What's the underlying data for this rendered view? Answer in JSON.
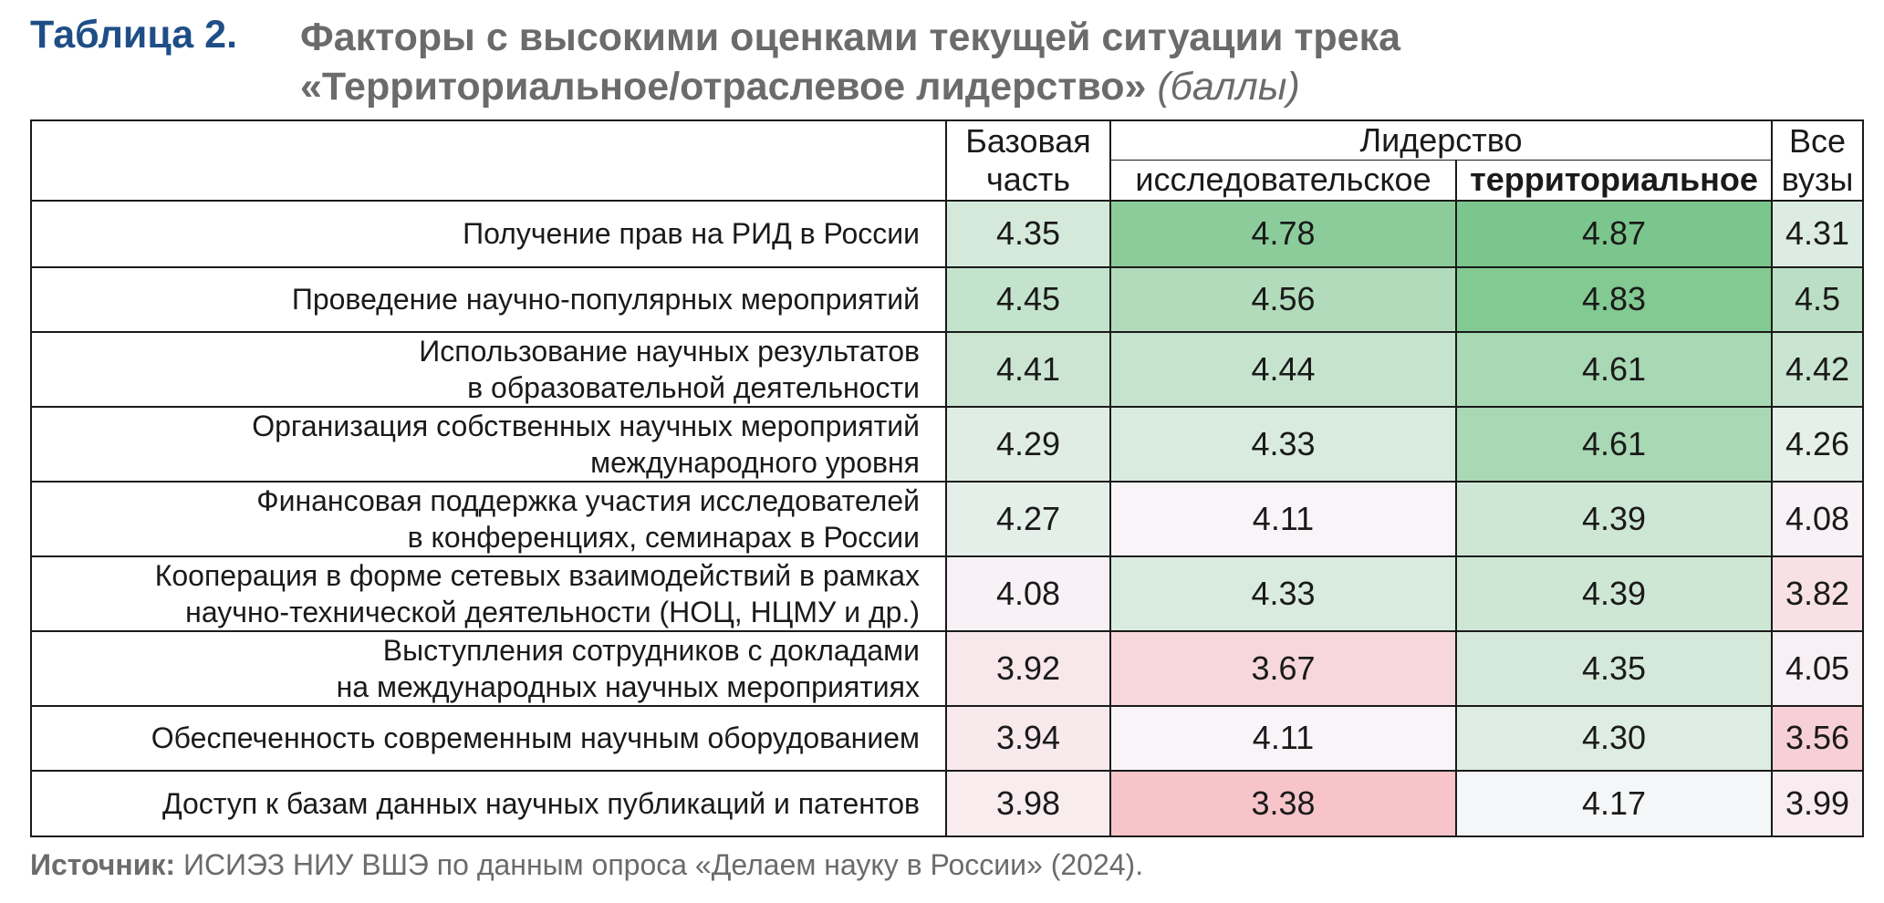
{
  "header": {
    "table_label": "Таблица 2.",
    "title_line1": "Факторы с высокими оценками текущей ситуации трека",
    "title_line2": "«Территориальное/отраслевое лидерство»",
    "title_unit": "(баллы)"
  },
  "columns": {
    "base_line1": "Базовая",
    "base_line2": "часть",
    "leadership": "Лидерство",
    "research": "исследовательское",
    "territorial": "территориальное",
    "all_line1": "Все",
    "all_line2": "вузы"
  },
  "rows": [
    {
      "factor": "Получение прав на РИД в России",
      "base": "4.35",
      "research": "4.78",
      "territorial": "4.87",
      "all": "4.31"
    },
    {
      "factor": "Проведение научно-популярных мероприятий",
      "base": "4.45",
      "research": "4.56",
      "territorial": "4.83",
      "all": "4.5"
    },
    {
      "factor": "Использование научных результатов\nв образовательной деятельности",
      "base": "4.41",
      "research": "4.44",
      "territorial": "4.61",
      "all": "4.42"
    },
    {
      "factor": "Организация собственных научных мероприятий\nмеждународного уровня",
      "base": "4.29",
      "research": "4.33",
      "territorial": "4.61",
      "all": "4.26"
    },
    {
      "factor": "Финансовая поддержка участия исследователей\nв конференциях, семинарах в России",
      "base": "4.27",
      "research": "4.11",
      "territorial": "4.39",
      "all": "4.08"
    },
    {
      "factor": "Кооперация в форме сетевых взаимодействий в рамках\nнаучно-технической деятельности (НОЦ, НЦМУ и др.)",
      "base": "4.08",
      "research": "4.33",
      "territorial": "4.39",
      "all": "3.82"
    },
    {
      "factor": "Выступления сотрудников с докладами\nна международных научных мероприятиях",
      "base": "3.92",
      "research": "3.67",
      "territorial": "4.35",
      "all": "4.05"
    },
    {
      "factor": "Обеспеченность современным научным оборудованием",
      "base": "3.94",
      "research": "4.11",
      "territorial": "4.30",
      "all": "3.56"
    },
    {
      "factor": "Доступ к базам данных научных публикаций и патентов",
      "base": "3.98",
      "research": "3.38",
      "territorial": "4.17",
      "all": "3.99"
    }
  ],
  "source": {
    "label": "Источник:",
    "text": "ИСИЭЗ НИУ ВШЭ по данным опроса «Делаем науку в России» (2024)."
  }
}
